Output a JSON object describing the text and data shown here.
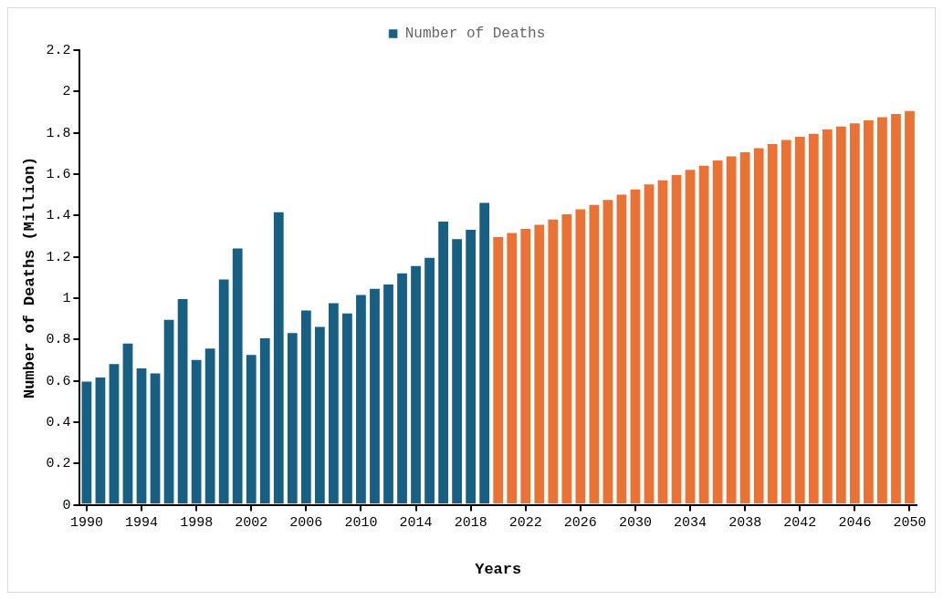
{
  "chart_data": {
    "type": "bar",
    "xlabel": "Years",
    "ylabel": "Number of Deaths (Million)",
    "categories": [
      "1990",
      null,
      null,
      null,
      "1994",
      null,
      null,
      null,
      "1998",
      null,
      null,
      null,
      "2002",
      null,
      null,
      null,
      "2006",
      null,
      null,
      null,
      "2010",
      null,
      null,
      null,
      "2014",
      null,
      null,
      null,
      "2018",
      null,
      null,
      null,
      "2022",
      null,
      null,
      null,
      "2026",
      null,
      null,
      null,
      "2030",
      null,
      null,
      null,
      "2034",
      null,
      null,
      null,
      "2038",
      null,
      null,
      null,
      "2042",
      null,
      null,
      null,
      "2046",
      null,
      null,
      null,
      "2050"
    ],
    "series": [
      {
        "name": "Number of Deaths",
        "color": "#175f83",
        "values": [
          0.6,
          0.62,
          0.685,
          0.785,
          0.665,
          0.64,
          0.9,
          1.0,
          0.705,
          0.76,
          1.095,
          1.245,
          0.73,
          0.81,
          1.42,
          0.835,
          0.945,
          0.865,
          0.98,
          0.93,
          1.02,
          1.05,
          1.07,
          1.125,
          1.16,
          1.2,
          1.375,
          1.29,
          1.335,
          1.465,
          null,
          null,
          null,
          null,
          null,
          null,
          null,
          null,
          null,
          null,
          null,
          null,
          null,
          null,
          null,
          null,
          null,
          null,
          null,
          null,
          null,
          null,
          null,
          null,
          null,
          null,
          null,
          null,
          null,
          null,
          null
        ]
      },
      {
        "color": "#ea7234",
        "values": [
          null,
          null,
          null,
          null,
          null,
          null,
          null,
          null,
          null,
          null,
          null,
          null,
          null,
          null,
          null,
          null,
          null,
          null,
          null,
          null,
          null,
          null,
          null,
          null,
          null,
          null,
          null,
          null,
          null,
          null,
          1.3,
          1.32,
          1.34,
          1.36,
          1.385,
          1.41,
          1.435,
          1.455,
          1.48,
          1.505,
          1.53,
          1.555,
          1.575,
          1.6,
          1.625,
          1.645,
          1.67,
          1.69,
          1.71,
          1.73,
          1.75,
          1.77,
          1.785,
          1.8,
          1.82,
          1.835,
          1.85,
          1.865,
          1.88,
          1.895,
          1.91
        ]
      }
    ],
    "ylim": [
      0,
      2.2
    ],
    "yticks": [
      0,
      0.2,
      0.4,
      0.6,
      0.8,
      1,
      1.2,
      1.4,
      1.6,
      1.8,
      2,
      2.2
    ],
    "grid": false,
    "legend": "top"
  }
}
